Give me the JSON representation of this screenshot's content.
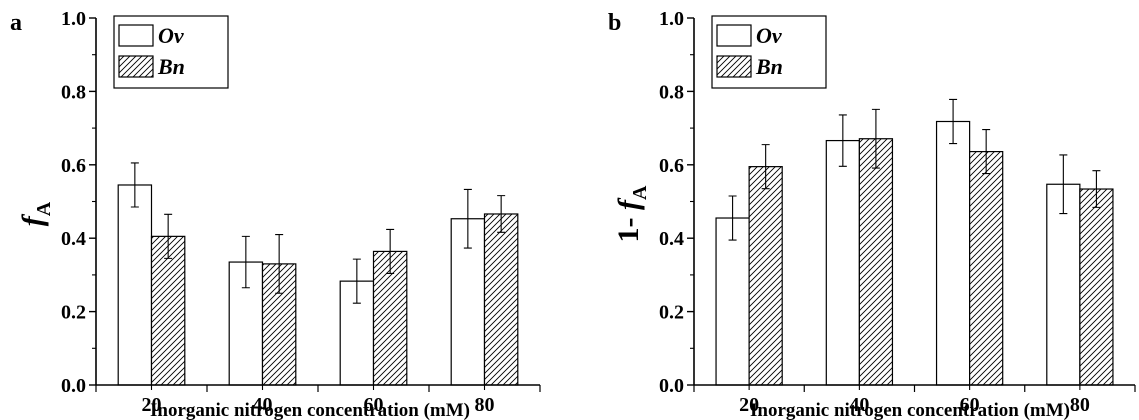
{
  "chart_data": [
    {
      "type": "bar",
      "panel": "a",
      "xlabel": "Inorganic nitrogen concentration (mM)",
      "ylabel": "f",
      "ylabel_sub": "A",
      "categories": [
        "20",
        "40",
        "60",
        "80"
      ],
      "ylim": [
        0.0,
        1.0
      ],
      "yticks": [
        "0.0",
        "0.2",
        "0.4",
        "0.6",
        "0.8",
        "1.0"
      ],
      "legend_position": "top-left",
      "series": [
        {
          "name": "Ov",
          "fill": "open",
          "values": [
            0.545,
            0.335,
            0.283,
            0.453
          ],
          "errors": [
            0.06,
            0.07,
            0.06,
            0.08
          ]
        },
        {
          "name": "Bn",
          "fill": "hatched",
          "values": [
            0.405,
            0.33,
            0.364,
            0.466
          ],
          "errors": [
            0.06,
            0.08,
            0.06,
            0.05
          ]
        }
      ]
    },
    {
      "type": "bar",
      "panel": "b",
      "xlabel": "Inorganic nitrogen concentration (mM)",
      "ylabel_prefix": "1- ",
      "ylabel": "f",
      "ylabel_sub": "A",
      "categories": [
        "20",
        "40",
        "60",
        "80"
      ],
      "ylim": [
        0.0,
        1.0
      ],
      "yticks": [
        "0.0",
        "0.2",
        "0.4",
        "0.6",
        "0.8",
        "1.0"
      ],
      "legend_position": "top-left",
      "series": [
        {
          "name": "Ov",
          "fill": "open",
          "values": [
            0.455,
            0.666,
            0.718,
            0.547
          ],
          "errors": [
            0.06,
            0.07,
            0.06,
            0.08
          ]
        },
        {
          "name": "Bn",
          "fill": "hatched",
          "values": [
            0.595,
            0.671,
            0.636,
            0.534
          ],
          "errors": [
            0.06,
            0.08,
            0.06,
            0.05
          ]
        }
      ]
    }
  ]
}
